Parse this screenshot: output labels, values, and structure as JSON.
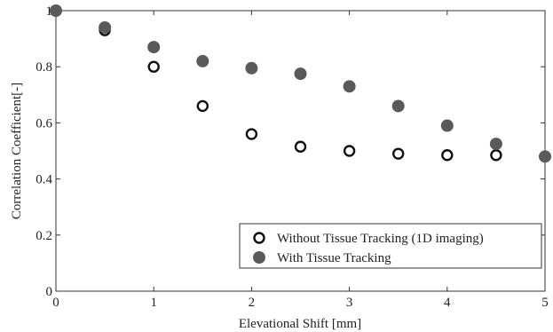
{
  "chart_data": {
    "type": "scatter",
    "xlabel": "Elevational Shift [mm]",
    "ylabel": "Correlation Coefficient[-]",
    "xlim": [
      0,
      5
    ],
    "ylim": [
      0,
      1
    ],
    "x_ticks": [
      "0",
      "1",
      "2",
      "3",
      "4",
      "5"
    ],
    "y_ticks": [
      "0",
      "0.2",
      "0.4",
      "0.6",
      "0.8",
      "1"
    ],
    "grid": false,
    "legend_position": "bottom-right",
    "series": [
      {
        "name": "Without Tissue Tracking (1D imaging)",
        "marker": "open-circle",
        "color": "#111111",
        "x": [
          0,
          0.5,
          1,
          1.5,
          2,
          2.5,
          3,
          3.5,
          4,
          4.5
        ],
        "y": [
          1.0,
          0.93,
          0.8,
          0.66,
          0.56,
          0.515,
          0.5,
          0.49,
          0.485,
          0.485
        ]
      },
      {
        "name": "With Tissue Tracking",
        "marker": "filled-circle",
        "color": "#5a5a5a",
        "x": [
          0,
          0.5,
          1,
          1.5,
          2,
          2.5,
          3,
          3.5,
          4,
          4.5,
          5
        ],
        "y": [
          1.0,
          0.94,
          0.87,
          0.82,
          0.795,
          0.775,
          0.73,
          0.66,
          0.59,
          0.525,
          0.48
        ]
      }
    ]
  }
}
